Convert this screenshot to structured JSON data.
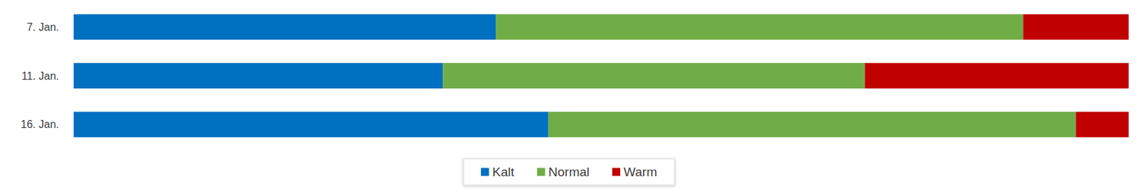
{
  "chart_data": {
    "type": "bar",
    "orientation": "horizontal",
    "stacked": true,
    "categories": [
      "7. Jan.",
      "11. Jan.",
      "16. Jan."
    ],
    "series": [
      {
        "name": "Kalt",
        "color": "#0070c0",
        "values": [
          40,
          35,
          45
        ]
      },
      {
        "name": "Normal",
        "color": "#70ad47",
        "values": [
          50,
          40,
          50
        ]
      },
      {
        "name": "Warm",
        "color": "#c00000",
        "values": [
          10,
          25,
          5
        ]
      }
    ],
    "xlim": [
      0,
      100
    ],
    "tick_labels": "y",
    "grid": false,
    "legend": "bottom"
  }
}
